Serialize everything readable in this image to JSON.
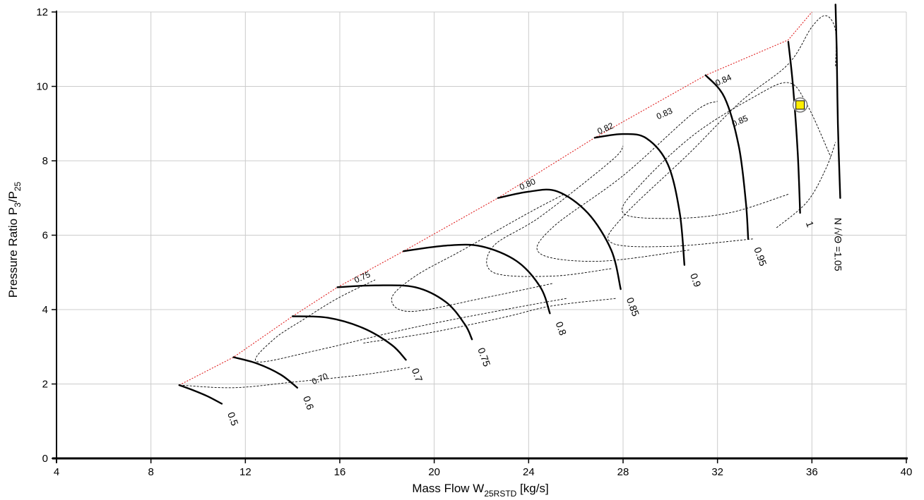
{
  "chart_data": {
    "type": "line",
    "title": "",
    "xlabel": {
      "main": "Mass Flow W",
      "sub": "25RSTD",
      "unit": " [kg/s]"
    },
    "ylabel": {
      "main": "Pressure  Ratio  P",
      "sub1": "3",
      "slash": "/P",
      "sub2": "25"
    },
    "xlim": [
      4,
      40
    ],
    "ylim": [
      0,
      12
    ],
    "xticks": [
      4,
      8,
      12,
      16,
      20,
      24,
      28,
      32,
      36,
      40
    ],
    "yticks": [
      0,
      2,
      4,
      6,
      8,
      10,
      12
    ],
    "grid": true,
    "speed_lines": [
      {
        "label": "0.5",
        "points": [
          [
            9.2,
            1.97
          ],
          [
            9.8,
            1.83
          ],
          [
            10.4,
            1.67
          ],
          [
            11.0,
            1.47
          ]
        ]
      },
      {
        "label": "0.6",
        "points": [
          [
            11.5,
            2.72
          ],
          [
            12.5,
            2.55
          ],
          [
            13.5,
            2.25
          ],
          [
            14.2,
            1.9
          ]
        ]
      },
      {
        "label": "0.7",
        "points": [
          [
            14.0,
            3.82
          ],
          [
            15.5,
            3.78
          ],
          [
            17.0,
            3.5
          ],
          [
            18.2,
            3.05
          ],
          [
            18.8,
            2.65
          ]
        ]
      },
      {
        "label": "0.75",
        "points": [
          [
            15.9,
            4.6
          ],
          [
            17.5,
            4.65
          ],
          [
            19.2,
            4.6
          ],
          [
            20.5,
            4.2
          ],
          [
            21.3,
            3.6
          ],
          [
            21.6,
            3.2
          ]
        ]
      },
      {
        "label": "0.8",
        "points": [
          [
            18.7,
            5.57
          ],
          [
            20.5,
            5.72
          ],
          [
            22.0,
            5.7
          ],
          [
            23.5,
            5.3
          ],
          [
            24.5,
            4.6
          ],
          [
            24.9,
            3.9
          ]
        ]
      },
      {
        "label": "0.85",
        "points": [
          [
            22.7,
            7.0
          ],
          [
            24.0,
            7.17
          ],
          [
            25.2,
            7.18
          ],
          [
            26.5,
            6.6
          ],
          [
            27.5,
            5.6
          ],
          [
            27.9,
            4.55
          ]
        ]
      },
      {
        "label": "0.9",
        "points": [
          [
            26.8,
            8.62
          ],
          [
            28.0,
            8.72
          ],
          [
            29.0,
            8.6
          ],
          [
            29.9,
            7.9
          ],
          [
            30.4,
            6.6
          ],
          [
            30.6,
            5.2
          ]
        ]
      },
      {
        "label": "0.95",
        "points": [
          [
            31.5,
            10.3
          ],
          [
            32.3,
            9.7
          ],
          [
            32.9,
            8.4
          ],
          [
            33.2,
            6.9
          ],
          [
            33.3,
            5.9
          ]
        ]
      },
      {
        "label": "1",
        "points": [
          [
            35.0,
            11.2
          ],
          [
            35.2,
            10.0
          ],
          [
            35.4,
            8.2
          ],
          [
            35.5,
            6.6
          ]
        ]
      },
      {
        "label": "N /√Θ =1.05",
        "points": [
          [
            37.0,
            12.2
          ],
          [
            37.05,
            11.0
          ],
          [
            37.1,
            9.0
          ],
          [
            37.2,
            7.0
          ]
        ]
      }
    ],
    "efficiency_islands": [
      {
        "label": "0.70",
        "points": [
          [
            9.2,
            1.97
          ],
          [
            11.5,
            1.9
          ],
          [
            14.0,
            2.05
          ],
          [
            17.0,
            2.25
          ],
          [
            19.0,
            2.45
          ]
        ],
        "label_at": [
          15.2,
          2.07
        ]
      },
      {
        "label": "0.75",
        "points": [
          [
            25.6,
            4.3
          ],
          [
            23.0,
            4.0
          ],
          [
            19.0,
            3.5
          ],
          [
            15.0,
            2.9
          ],
          [
            12.5,
            2.6
          ],
          [
            13.2,
            3.2
          ],
          [
            14.5,
            3.75
          ],
          [
            15.9,
            4.3
          ],
          [
            17.5,
            4.8
          ]
        ],
        "label_at": [
          17.0,
          4.8
        ]
      },
      {
        "label": "0.80",
        "points": [
          [
            25.0,
            4.7
          ],
          [
            22.0,
            4.3
          ],
          [
            19.0,
            3.95
          ],
          [
            18.2,
            4.3
          ],
          [
            19.2,
            4.9
          ],
          [
            21.2,
            5.6
          ],
          [
            24.0,
            6.6
          ],
          [
            25.5,
            7.1
          ]
        ],
        "label_at": [
          24.0,
          7.3
        ]
      },
      {
        "label": "0.82",
        "points": [
          [
            27.5,
            5.1
          ],
          [
            25.0,
            4.9
          ],
          [
            22.5,
            5.0
          ],
          [
            22.5,
            5.7
          ],
          [
            24.5,
            6.5
          ],
          [
            27.5,
            8.0
          ],
          [
            28.0,
            8.4
          ]
        ],
        "label_at": [
          27.3,
          8.8
        ]
      },
      {
        "label": "0.83",
        "points": [
          [
            30.8,
            5.6
          ],
          [
            27.0,
            5.3
          ],
          [
            24.5,
            5.5
          ],
          [
            25.0,
            6.2
          ],
          [
            28.0,
            7.6
          ],
          [
            31.0,
            9.3
          ],
          [
            32.0,
            9.6
          ]
        ],
        "label_at": [
          29.8,
          9.2
        ]
      },
      {
        "label": "0.84",
        "points": [
          [
            33.5,
            5.9
          ],
          [
            30.0,
            5.7
          ],
          [
            27.5,
            5.8
          ],
          [
            28.0,
            6.5
          ],
          [
            30.8,
            8.2
          ],
          [
            33.0,
            9.6
          ],
          [
            35.0,
            10.6
          ],
          [
            36.0,
            11.6
          ],
          [
            36.6,
            11.9
          ],
          [
            37.0,
            11.5
          ],
          [
            37.0,
            10.5
          ]
        ],
        "label_at": [
          32.3,
          10.1
        ]
      },
      {
        "label": "0.85",
        "points": [
          [
            35.0,
            7.1
          ],
          [
            32.5,
            6.6
          ],
          [
            30.0,
            6.45
          ],
          [
            28.0,
            6.6
          ],
          [
            28.8,
            7.4
          ],
          [
            31.0,
            8.7
          ],
          [
            33.5,
            9.7
          ],
          [
            35.0,
            10.1
          ],
          [
            35.8,
            9.5
          ],
          [
            36.8,
            8.1
          ]
        ],
        "label_at": [
          33.0,
          9.0
        ]
      },
      {
        "label": "",
        "points": [
          [
            17.0,
            3.1
          ],
          [
            20.0,
            3.4
          ],
          [
            23.0,
            3.8
          ],
          [
            25.0,
            4.1
          ],
          [
            27.7,
            4.3
          ]
        ],
        "label_at": null
      },
      {
        "label": "",
        "points": [
          [
            34.5,
            6.2
          ],
          [
            35.8,
            6.9
          ],
          [
            36.6,
            7.8
          ],
          [
            37.0,
            8.5
          ]
        ],
        "label_at": null
      }
    ],
    "surge_line": [
      [
        9.2,
        1.97
      ],
      [
        11.5,
        2.72
      ],
      [
        14.0,
        3.82
      ],
      [
        15.9,
        4.6
      ],
      [
        18.7,
        5.57
      ],
      [
        22.7,
        7.0
      ],
      [
        26.8,
        8.62
      ],
      [
        31.5,
        10.3
      ],
      [
        35.0,
        11.25
      ],
      [
        36.0,
        12.0
      ]
    ],
    "operating_point": {
      "x": 35.5,
      "y": 9.5,
      "color": "#ffee00"
    }
  }
}
